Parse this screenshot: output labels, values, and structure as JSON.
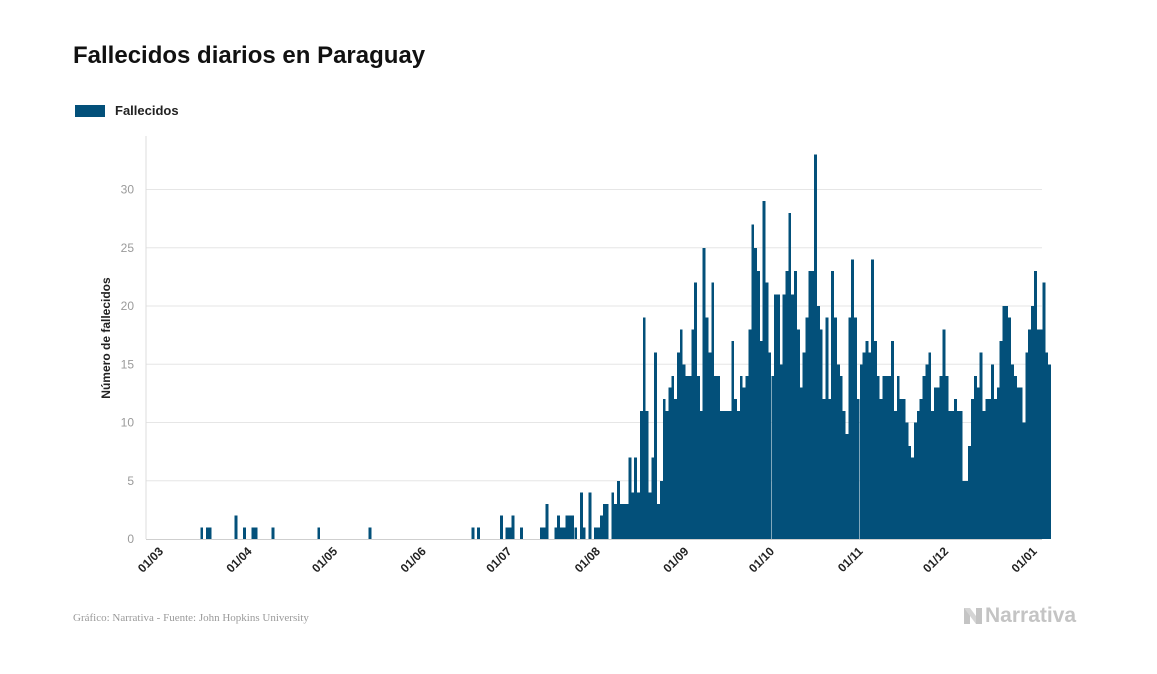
{
  "title": "Fallecidos diarios en Paraguay",
  "legend": {
    "label": "Fallecidos",
    "color": "#03507a"
  },
  "footer": {
    "credit": "Gráfico: Narrativa - Fuente: John Hopkins University"
  },
  "brand": {
    "name": "Narrativa",
    "logo_icon": "narrativa-n-logo-icon"
  },
  "chart_data": {
    "type": "bar",
    "title": "Fallecidos diarios en Paraguay",
    "xlabel": "",
    "ylabel": "Número de fallecidos",
    "x_start": "01/03",
    "x_ticks": [
      "01/03",
      "01/04",
      "01/05",
      "01/06",
      "01/07",
      "01/08",
      "01/09",
      "01/10",
      "01/11",
      "01/12",
      "01/01"
    ],
    "y_ticks": [
      0,
      5,
      10,
      15,
      20,
      25,
      30
    ],
    "ylim": [
      0,
      34
    ],
    "grid": true,
    "legend_position": "top-left",
    "series": [
      {
        "name": "Fallecidos",
        "color": "#03507a",
        "values": [
          0,
          0,
          0,
          0,
          0,
          0,
          0,
          0,
          0,
          0,
          0,
          0,
          0,
          0,
          0,
          0,
          0,
          0,
          0,
          1,
          0,
          1,
          1,
          0,
          0,
          0,
          0,
          0,
          0,
          0,
          0,
          2,
          0,
          0,
          1,
          0,
          0,
          1,
          1,
          0,
          0,
          0,
          0,
          0,
          1,
          0,
          0,
          0,
          0,
          0,
          0,
          0,
          0,
          0,
          0,
          0,
          0,
          0,
          0,
          0,
          1,
          0,
          0,
          0,
          0,
          0,
          0,
          0,
          0,
          0,
          0,
          0,
          0,
          0,
          0,
          0,
          0,
          0,
          1,
          0,
          0,
          0,
          0,
          0,
          0,
          0,
          0,
          0,
          0,
          0,
          0,
          0,
          0,
          0,
          0,
          0,
          0,
          0,
          0,
          0,
          0,
          0,
          0,
          0,
          0,
          0,
          0,
          0,
          0,
          0,
          0,
          0,
          0,
          0,
          1,
          0,
          1,
          0,
          0,
          0,
          0,
          0,
          0,
          0,
          2,
          0,
          1,
          1,
          2,
          0,
          0,
          1,
          0,
          0,
          0,
          0,
          0,
          0,
          1,
          1,
          3,
          0,
          0,
          1,
          2,
          1,
          1,
          2,
          2,
          2,
          1,
          0,
          4,
          1,
          0,
          4,
          0,
          1,
          1,
          2,
          3,
          3,
          0,
          4,
          3,
          5,
          3,
          3,
          3,
          7,
          4,
          7,
          4,
          11,
          19,
          11,
          4,
          7,
          16,
          3,
          5,
          12,
          11,
          13,
          14,
          12,
          16,
          18,
          15,
          14,
          14,
          18,
          22,
          14,
          11,
          25,
          19,
          16,
          22,
          14,
          14,
          11,
          11,
          11,
          11,
          17,
          12,
          11,
          14,
          13,
          14,
          18,
          27,
          25,
          23,
          17,
          29,
          22,
          16,
          14,
          21,
          21,
          15,
          21,
          23,
          28,
          21,
          23,
          18,
          13,
          16,
          19,
          23,
          23,
          33,
          20,
          18,
          12,
          19,
          12,
          23,
          19,
          15,
          14,
          11,
          9,
          19,
          24,
          19,
          12,
          15,
          16,
          17,
          16,
          24,
          17,
          14,
          12,
          14,
          14,
          14,
          17,
          11,
          14,
          12,
          12,
          10,
          8,
          7,
          10,
          11,
          12,
          14,
          15,
          16,
          11,
          13,
          13,
          14,
          18,
          14,
          11,
          11,
          12,
          11,
          11,
          5,
          5,
          8,
          12,
          14,
          13,
          16,
          11,
          12,
          12,
          15,
          12,
          13,
          17,
          20,
          20,
          19,
          15,
          14,
          13,
          13,
          10,
          16,
          18,
          20,
          23,
          18,
          18,
          22,
          16,
          15
        ]
      }
    ]
  }
}
